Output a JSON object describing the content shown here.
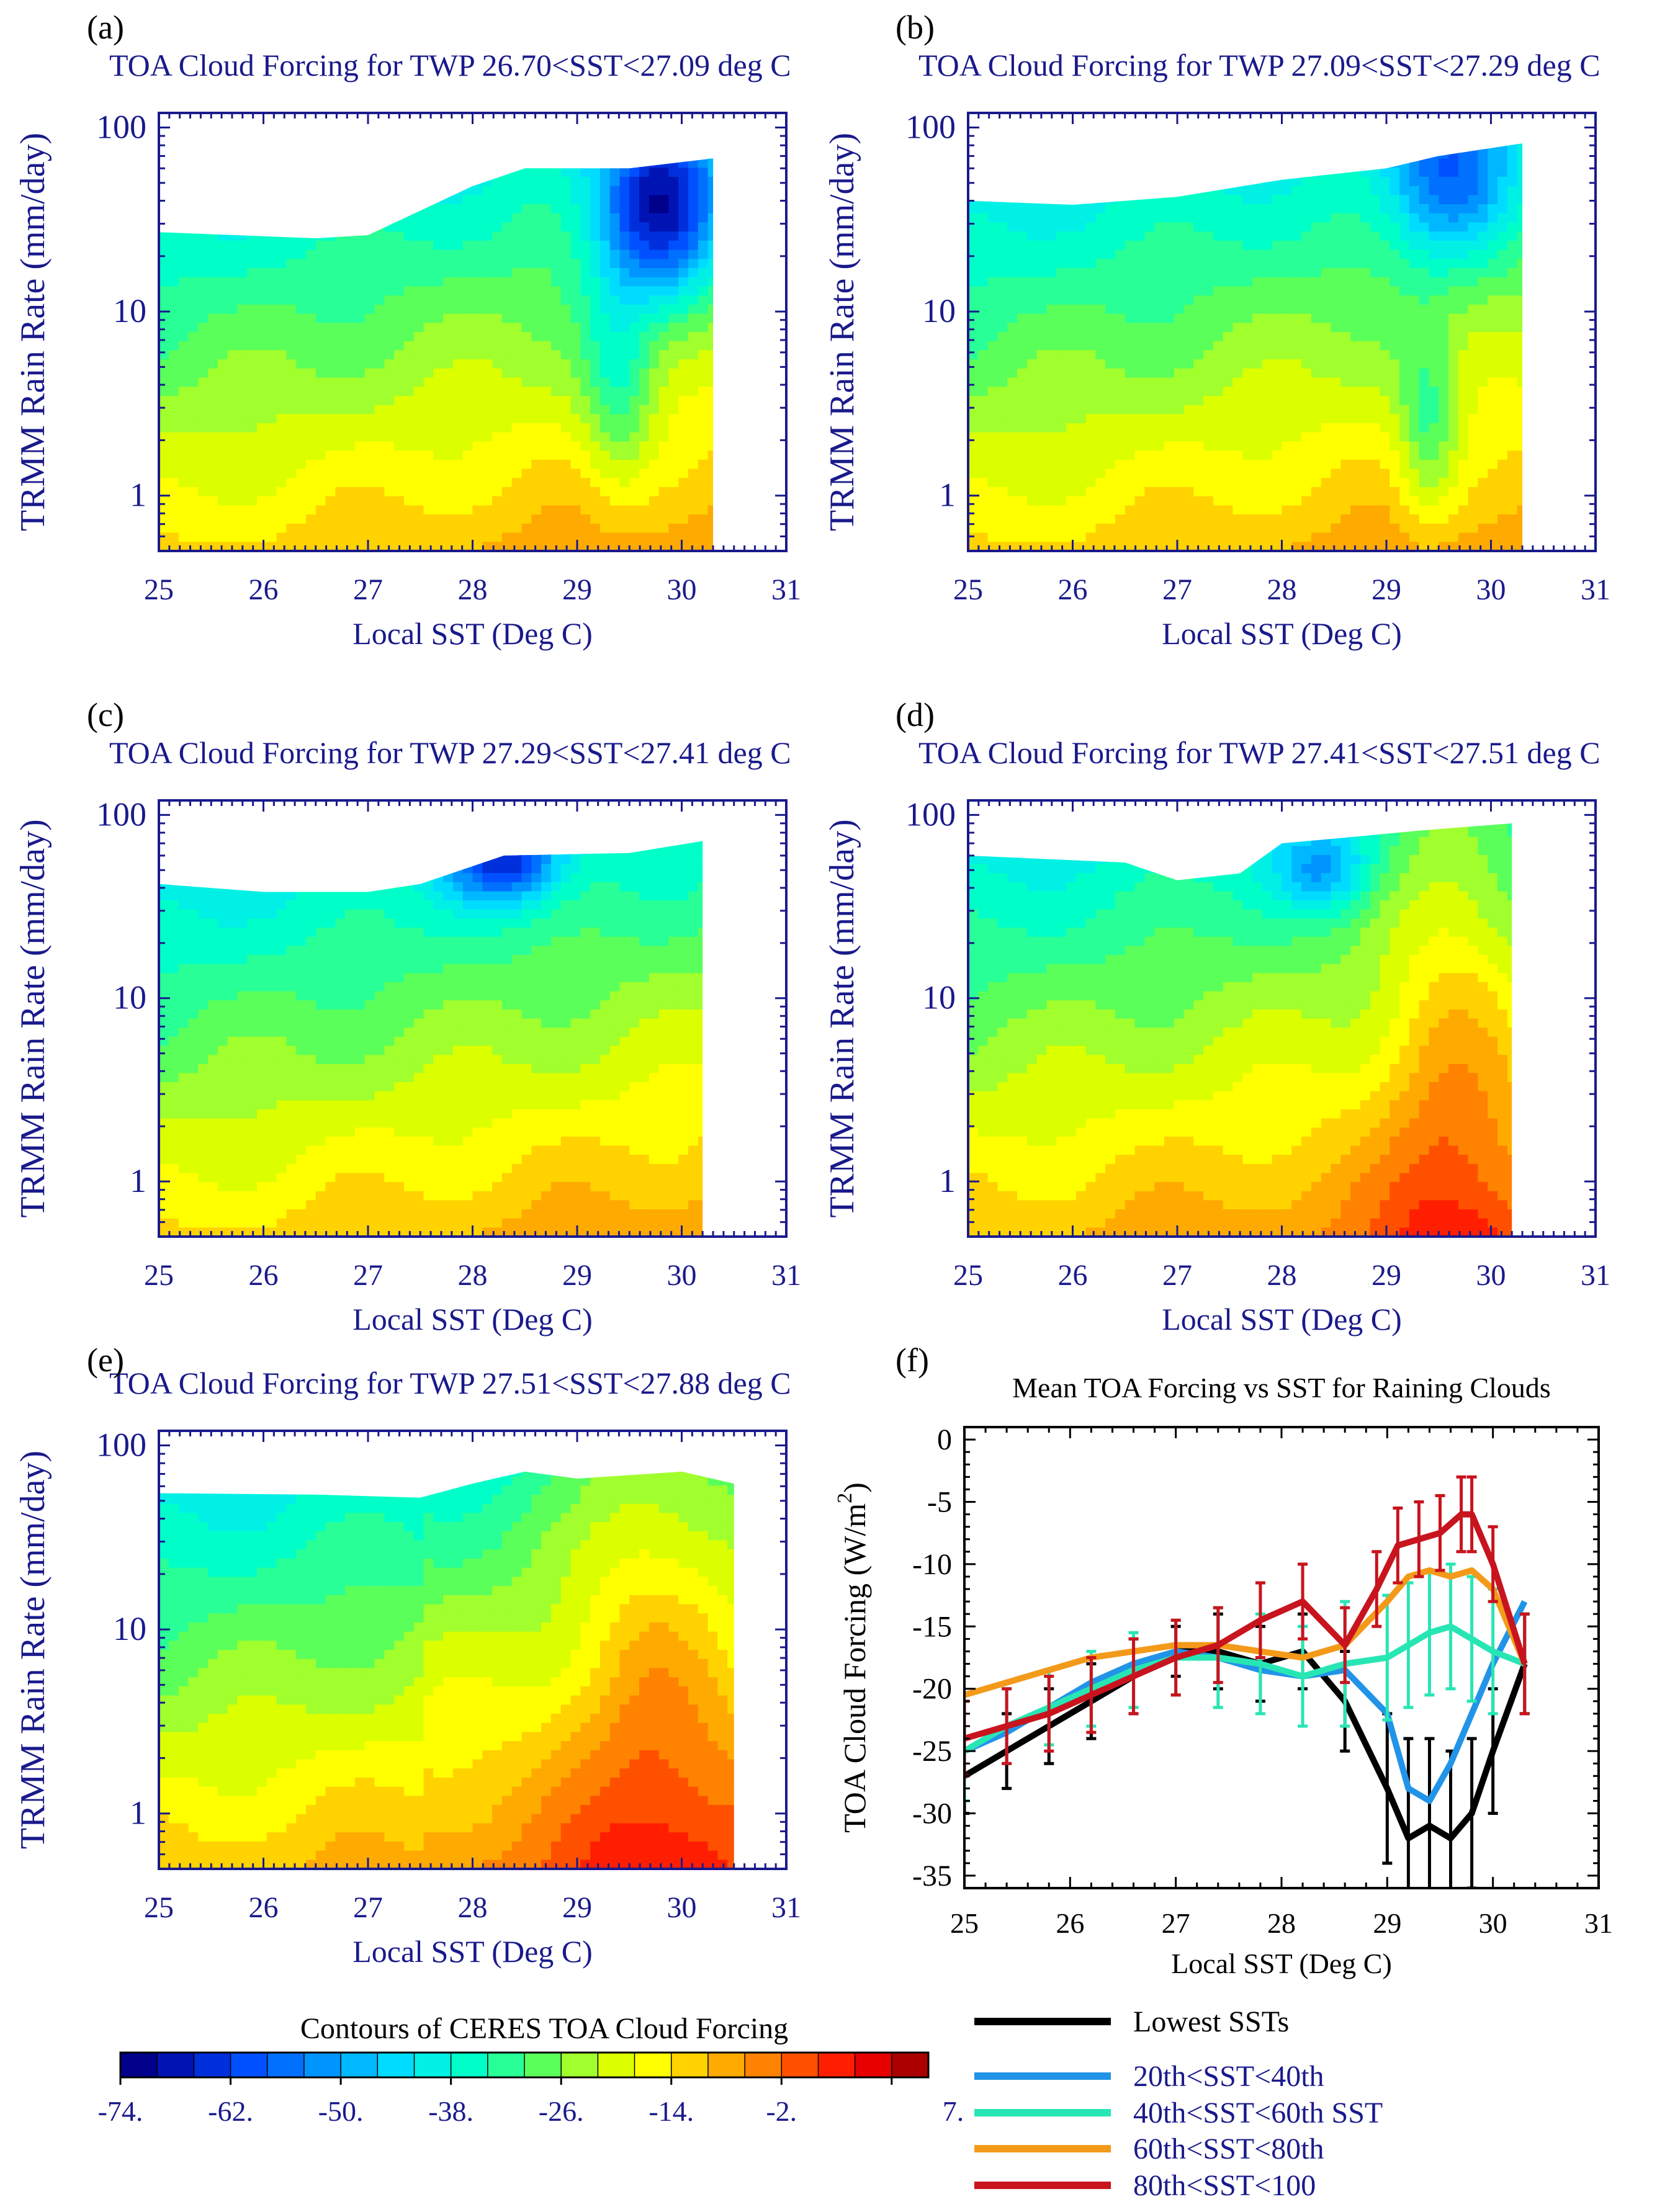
{
  "figure": {
    "colorbar": {
      "title": "Contours of CERES TOA Cloud Forcing",
      "levels": [
        -74,
        -70,
        -66,
        -62,
        -58,
        -54,
        -50,
        -46,
        -42,
        -38,
        -34,
        -30,
        -26,
        -22,
        -18,
        -14,
        -10,
        -6,
        -2,
        2,
        7
      ],
      "labels": [
        "-74.",
        "-62.",
        "-50.",
        "-38.",
        "-26.",
        "-14.",
        "-2.",
        "7."
      ],
      "colors": [
        "#00008b",
        "#0014b4",
        "#0030dc",
        "#0050ff",
        "#0070ff",
        "#0094ff",
        "#00b8ff",
        "#00dcff",
        "#00f0e6",
        "#00ffc8",
        "#28ff96",
        "#5aff5a",
        "#a0ff2d",
        "#dcff00",
        "#ffff00",
        "#ffd200",
        "#ffaa00",
        "#ff8200",
        "#ff5000",
        "#ff1e00",
        "#e60000",
        "#aa0000"
      ]
    },
    "legend": [
      {
        "label": "Lowest SSTs",
        "color": "#000000"
      },
      {
        "label": "20th<SST<40th",
        "color": "#2294e8"
      },
      {
        "label": "40th<SST<60th SST",
        "color": "#28e6b4"
      },
      {
        "label": "60th<SST<80th",
        "color": "#f39a1a"
      },
      {
        "label": "80th<SST<100",
        "color": "#c8141e"
      }
    ]
  },
  "chart_data": [
    {
      "type": "heatmap",
      "panel": "(a)",
      "title": "TOA Cloud Forcing for TWP 26.70<SST<27.09 deg C",
      "xlabel": "Local SST (Deg C)",
      "ylabel": "TRMM Rain Rate (mm/day)",
      "xlim": [
        25,
        31
      ],
      "ylim": [
        0.5,
        120
      ],
      "yscale": "log",
      "xticks": [
        "25",
        "26",
        "27",
        "28",
        "29",
        "30",
        "31"
      ],
      "yticks": [
        "1",
        "10",
        "100"
      ],
      "top_boundary": [
        [
          25,
          27
        ],
        [
          26.5,
          25
        ],
        [
          27,
          26
        ],
        [
          28,
          48
        ],
        [
          28.5,
          60
        ],
        [
          29.5,
          60
        ],
        [
          30.3,
          68
        ]
      ],
      "sst_max": 30.3,
      "cold_center": [
        29.8,
        35
      ]
    },
    {
      "type": "heatmap",
      "panel": "(b)",
      "title": "TOA Cloud Forcing for TWP 27.09<SST<27.29 deg C",
      "xlabel": "Local SST (Deg C)",
      "ylabel": "TRMM Rain Rate (mm/day)",
      "xlim": [
        25,
        31
      ],
      "ylim": [
        0.5,
        120
      ],
      "yscale": "log",
      "xticks": [
        "25",
        "26",
        "27",
        "28",
        "29",
        "30",
        "31"
      ],
      "yticks": [
        "1",
        "10",
        "100"
      ],
      "top_boundary": [
        [
          25,
          40
        ],
        [
          26,
          38
        ],
        [
          27,
          42
        ],
        [
          28,
          52
        ],
        [
          29,
          60
        ],
        [
          29.5,
          70
        ],
        [
          30.3,
          82
        ]
      ],
      "sst_max": 30.3,
      "cold_center": [
        29.6,
        55
      ]
    },
    {
      "type": "heatmap",
      "panel": "(c)",
      "title": "TOA Cloud Forcing for TWP 27.29<SST<27.41 deg C",
      "xlabel": "Local SST (Deg C)",
      "ylabel": "TRMM Rain Rate (mm/day)",
      "xlim": [
        25,
        31
      ],
      "ylim": [
        0.5,
        120
      ],
      "yscale": "log",
      "xticks": [
        "25",
        "26",
        "27",
        "28",
        "29",
        "30",
        "31"
      ],
      "yticks": [
        "1",
        "10",
        "100"
      ],
      "top_boundary": [
        [
          25,
          42
        ],
        [
          26,
          38
        ],
        [
          27,
          38
        ],
        [
          27.5,
          42
        ],
        [
          28.3,
          60
        ],
        [
          29.5,
          62
        ],
        [
          30.2,
          72
        ]
      ],
      "sst_max": 30.2,
      "cold_center": [
        28.3,
        55
      ]
    },
    {
      "type": "heatmap",
      "panel": "(d)",
      "title": "TOA Cloud Forcing for TWP 27.41<SST<27.51 deg C",
      "xlabel": "Local SST (Deg C)",
      "ylabel": "TRMM Rain Rate (mm/day)",
      "xlim": [
        25,
        31
      ],
      "ylim": [
        0.5,
        120
      ],
      "yscale": "log",
      "xticks": [
        "25",
        "26",
        "27",
        "28",
        "29",
        "30",
        "31"
      ],
      "yticks": [
        "1",
        "10",
        "100"
      ],
      "top_boundary": [
        [
          25,
          60
        ],
        [
          26.5,
          55
        ],
        [
          27,
          44
        ],
        [
          27.6,
          48
        ],
        [
          28,
          70
        ],
        [
          28.7,
          76
        ],
        [
          29.3,
          82
        ],
        [
          30.2,
          90
        ]
      ],
      "sst_max": 30.2,
      "cold_center": [
        28.4,
        50
      ]
    },
    {
      "type": "heatmap",
      "panel": "(e)",
      "title": "TOA Cloud Forcing for TWP 27.51<SST<27.88 deg C",
      "xlabel": "Local SST (Deg C)",
      "ylabel": "TRMM Rain Rate (mm/day)",
      "xlim": [
        25,
        31
      ],
      "ylim": [
        0.5,
        120
      ],
      "yscale": "log",
      "xticks": [
        "25",
        "26",
        "27",
        "28",
        "29",
        "30",
        "31"
      ],
      "yticks": [
        "1",
        "10",
        "100"
      ],
      "top_boundary": [
        [
          25,
          55
        ],
        [
          26.5,
          54
        ],
        [
          27.5,
          52
        ],
        [
          28,
          62
        ],
        [
          28.5,
          72
        ],
        [
          29,
          66
        ],
        [
          30,
          72
        ],
        [
          30.5,
          62
        ]
      ],
      "sst_max": 30.5,
      "cold_center": [
        25.5,
        35
      ]
    },
    {
      "type": "line",
      "panel": "(f)",
      "title": "Mean TOA Forcing vs SST for Raining Clouds",
      "xlabel": "Local SST (Deg C)",
      "ylabel": "TOA Cloud Forcing (W/m²)",
      "ylabel_main": "TOA Cloud Forcing (W/m",
      "ylabel_sup": "2",
      "ylabel_close": ")",
      "xlim": [
        25,
        31
      ],
      "ylim": [
        -36,
        1
      ],
      "xticks": [
        "25",
        "26",
        "27",
        "28",
        "29",
        "30",
        "31"
      ],
      "yticks": [
        "0",
        "-5",
        "-10",
        "-15",
        "-20",
        "-25",
        "-30",
        "-35"
      ],
      "series": [
        {
          "name": "Lowest SSTs",
          "color": "#000000",
          "x": [
            25.0,
            25.4,
            25.8,
            26.2,
            26.6,
            27.0,
            27.4,
            27.8,
            28.2,
            28.6,
            29.0,
            29.2,
            29.4,
            29.6,
            29.8,
            30.0,
            30.3
          ],
          "y": [
            -27,
            -25,
            -23,
            -21,
            -19,
            -17,
            -17,
            -18,
            -17,
            -21,
            -28,
            -32,
            -31,
            -32,
            -30,
            -25,
            -18
          ],
          "err": [
            3,
            3,
            3,
            3,
            3,
            2,
            3,
            3,
            3,
            4,
            6,
            8,
            7,
            7,
            6,
            5,
            4
          ]
        },
        {
          "name": "20th<SST<40th",
          "color": "#2294e8",
          "x": [
            25.0,
            25.4,
            25.8,
            26.2,
            26.6,
            27.0,
            27.4,
            27.8,
            28.2,
            28.6,
            29.0,
            29.2,
            29.4,
            29.6,
            29.8,
            30.0,
            30.3
          ],
          "y": [
            -25,
            -23.5,
            -21.5,
            -19.5,
            -18,
            -17,
            -17.5,
            -18.5,
            -19,
            -18.5,
            -22,
            -28,
            -29,
            -26,
            -22,
            -18,
            -13
          ],
          "err": [
            0,
            0,
            0,
            0,
            0,
            0,
            0,
            0,
            0,
            0,
            0,
            0,
            0,
            0,
            0,
            0,
            0
          ]
        },
        {
          "name": "40th<SST<60th SST",
          "color": "#28e6b4",
          "x": [
            25.0,
            25.4,
            25.8,
            26.2,
            26.6,
            27.0,
            27.4,
            27.8,
            28.2,
            28.6,
            29.0,
            29.2,
            29.4,
            29.6,
            29.8,
            30.0,
            30.3
          ],
          "y": [
            -25,
            -23,
            -21.5,
            -20,
            -18.5,
            -17.5,
            -17.5,
            -18,
            -19,
            -18,
            -17.5,
            -16.5,
            -15.5,
            -15,
            -16,
            -17,
            -18
          ],
          "err": [
            4,
            3,
            3,
            3,
            3,
            3,
            4,
            4,
            4,
            5,
            5,
            5,
            5,
            5,
            5,
            5,
            4
          ]
        },
        {
          "name": "60th<SST<80th",
          "color": "#f39a1a",
          "x": [
            25.0,
            25.4,
            25.8,
            26.2,
            26.6,
            27.0,
            27.4,
            27.8,
            28.2,
            28.6,
            29.0,
            29.2,
            29.4,
            29.6,
            29.8,
            30.0,
            30.3
          ],
          "y": [
            -20.5,
            -19.5,
            -18.5,
            -17.5,
            -17,
            -16.5,
            -16.5,
            -17,
            -17.5,
            -16.5,
            -13,
            -11,
            -10.5,
            -11,
            -10.5,
            -12,
            -18
          ],
          "err": [
            0,
            0,
            0,
            0,
            0,
            0,
            0,
            0,
            0,
            0,
            0,
            0,
            0,
            0,
            0,
            0,
            0
          ]
        },
        {
          "name": "80th<SST<100",
          "color": "#c8141e",
          "x": [
            25.0,
            25.4,
            25.8,
            26.2,
            26.6,
            27.0,
            27.4,
            27.8,
            28.2,
            28.6,
            28.9,
            29.1,
            29.3,
            29.5,
            29.7,
            29.8,
            30.0,
            30.3
          ],
          "y": [
            -24,
            -23,
            -22,
            -20.5,
            -19,
            -17.5,
            -16.5,
            -14.5,
            -13,
            -16.5,
            -12,
            -8.5,
            -8,
            -7.5,
            -6,
            -6,
            -10,
            -18
          ],
          "err": [
            3,
            3,
            3,
            3,
            3,
            3,
            3,
            3,
            3,
            3,
            3,
            3,
            3,
            3,
            3,
            3,
            3,
            4
          ]
        }
      ]
    }
  ]
}
